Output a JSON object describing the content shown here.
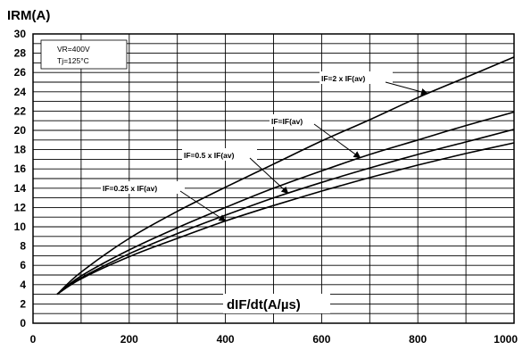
{
  "chart_data": {
    "type": "line",
    "title": "",
    "ylabel": "IRM(A)",
    "xlabel": "dIF/dt(A/µs)",
    "xlim": [
      0,
      1000
    ],
    "ylim": [
      0,
      30
    ],
    "x_ticks": [
      0,
      200,
      400,
      600,
      800,
      1000
    ],
    "y_ticks": [
      0,
      2,
      4,
      6,
      8,
      10,
      12,
      14,
      16,
      18,
      20,
      22,
      24,
      26,
      28,
      30
    ],
    "x_gridline_step": 100,
    "y_gridline_step": 1,
    "grid": true,
    "conditions": [
      "VR=400V",
      "Tj=125°C"
    ],
    "series": [
      {
        "name": "IF=2 x IF(av)",
        "x": [
          50,
          100,
          200,
          300,
          400,
          500,
          600,
          700,
          800,
          900,
          1000
        ],
        "y": [
          3.0,
          5.3,
          8.8,
          11.6,
          14.1,
          16.5,
          18.9,
          21.1,
          23.4,
          25.5,
          27.6
        ]
      },
      {
        "name": "IF=IF(av)",
        "x": [
          50,
          100,
          200,
          300,
          400,
          500,
          600,
          700,
          800,
          900,
          1000
        ],
        "y": [
          3.0,
          4.9,
          7.6,
          9.9,
          12.0,
          14.0,
          15.8,
          17.5,
          19.0,
          20.5,
          21.9
        ]
      },
      {
        "name": "IF=0.5 x IF(av)",
        "x": [
          50,
          100,
          200,
          300,
          400,
          500,
          600,
          700,
          800,
          900,
          1000
        ],
        "y": [
          3.0,
          4.7,
          7.2,
          9.3,
          11.2,
          13.0,
          14.6,
          16.1,
          17.5,
          18.8,
          20.1
        ]
      },
      {
        "name": "IF=0.25 x IF(av)",
        "x": [
          50,
          100,
          200,
          300,
          400,
          500,
          600,
          700,
          800,
          900,
          1000
        ],
        "y": [
          3.0,
          4.6,
          6.9,
          8.8,
          10.6,
          12.2,
          13.7,
          15.1,
          16.4,
          17.6,
          18.7
        ]
      }
    ],
    "annotations": [
      {
        "text": "IF=2 x IF(av)",
        "points_to_series": "IF=2 x IF(av)",
        "at_x": 820
      },
      {
        "text": "IF=IF(av)",
        "points_to_series": "IF=IF(av)",
        "at_x": 680
      },
      {
        "text": "IF=0.5 x IF(av)",
        "points_to_series": "IF=0.5 x IF(av)",
        "at_x": 530
      },
      {
        "text": "IF=0.25 x IF(av)",
        "points_to_series": "IF=0.25 x IF(av)",
        "at_x": 400
      }
    ]
  }
}
